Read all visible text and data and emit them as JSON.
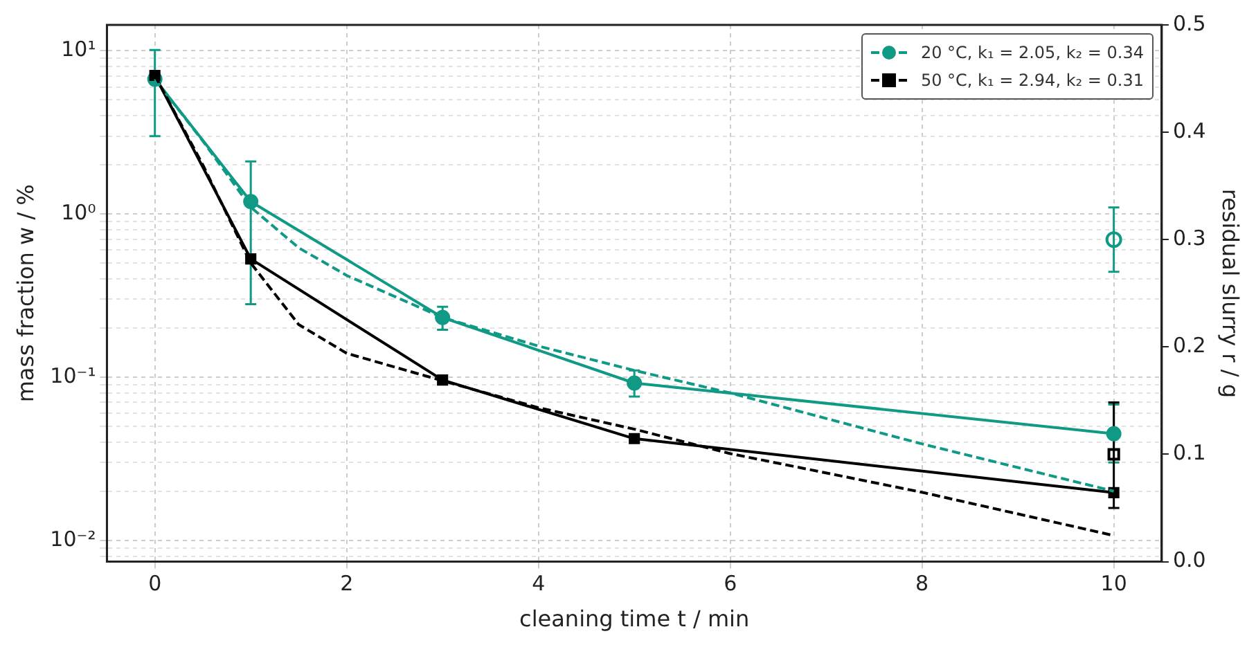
{
  "chart_data": {
    "type": "line",
    "xlabel": "cleaning time t / min",
    "ylabel": "mass fraction w / %",
    "y2label": "residual slurry r / g",
    "log": "y",
    "grid": true,
    "legend": "top right",
    "xlim": [
      -0.5,
      10.5
    ],
    "xticks": [
      0,
      2,
      4,
      6,
      8,
      10
    ],
    "ylim": [
      0.0074,
      14.4
    ],
    "yticks": [
      {
        "value": 0.008,
        "label": null
      },
      {
        "value": 0.009,
        "label": null
      },
      {
        "value": 0.01,
        "label": "10⁻²"
      },
      {
        "value": 0.02,
        "label": null
      },
      {
        "value": 0.03,
        "label": null
      },
      {
        "value": 0.04,
        "label": null
      },
      {
        "value": 0.05,
        "label": null
      },
      {
        "value": 0.06,
        "label": null
      },
      {
        "value": 0.07,
        "label": null
      },
      {
        "value": 0.08,
        "label": null
      },
      {
        "value": 0.09,
        "label": null
      },
      {
        "value": 0.1,
        "label": "10⁻¹"
      },
      {
        "value": 0.2,
        "label": null
      },
      {
        "value": 0.3,
        "label": null
      },
      {
        "value": 0.4,
        "label": null
      },
      {
        "value": 0.5,
        "label": null
      },
      {
        "value": 0.6,
        "label": null
      },
      {
        "value": 0.7,
        "label": null
      },
      {
        "value": 0.8,
        "label": null
      },
      {
        "value": 0.9,
        "label": null
      },
      {
        "value": 1,
        "label": "10⁰"
      },
      {
        "value": 2,
        "label": null
      },
      {
        "value": 3,
        "label": null
      },
      {
        "value": 4,
        "label": null
      },
      {
        "value": 5,
        "label": null
      },
      {
        "value": 6,
        "label": null
      },
      {
        "value": 7,
        "label": null
      },
      {
        "value": 8,
        "label": null
      },
      {
        "value": 9,
        "label": null
      },
      {
        "value": 10,
        "label": "10¹"
      }
    ],
    "y2lim": [
      0,
      0.5
    ],
    "y2ticks": [
      {
        "value": 0,
        "label": "0.0"
      },
      0.1,
      0.2,
      0.3,
      0.4,
      0.5
    ],
    "series": [
      {
        "name": "20 °C, k₁ = 2.05, k₂ = 0.34",
        "color": "#109a85",
        "marker": "circle",
        "line_style": "solid",
        "x": [
          0,
          1,
          3,
          5,
          10
        ],
        "values": [
          6.7,
          1.19,
          0.232,
          0.092,
          0.045
        ],
        "errors": [
          [
            3.0,
            10.1
          ],
          [
            0.28,
            2.1
          ],
          [
            0.195,
            0.27
          ],
          [
            0.076,
            0.11
          ],
          [
            0.03,
            0.068
          ]
        ]
      },
      {
        "name": "50 °C, k₁ = 2.94, k₂ = 0.31",
        "color": "#000000",
        "marker": "square",
        "line_style": "solid",
        "x": [
          0,
          1,
          3,
          5,
          10
        ],
        "values": [
          7.06,
          0.53,
          0.096,
          0.042,
          0.0196
        ],
        "errors": [
          null,
          null,
          null,
          null,
          [
            0.0158,
            0.07
          ]
        ]
      },
      {
        "color": "#109a85",
        "marker": "none",
        "line_style": "dashed",
        "x": [
          0,
          0.5,
          1,
          1.5,
          2,
          3,
          4,
          5,
          6,
          8,
          10
        ],
        "values": [
          6.7,
          2.8,
          1.1,
          0.62,
          0.42,
          0.232,
          0.155,
          0.11,
          0.08,
          0.039,
          0.02
        ]
      },
      {
        "color": "#000000",
        "marker": "none",
        "line_style": "dashed",
        "x": [
          0,
          0.5,
          1,
          1.5,
          2,
          3,
          4,
          5,
          6,
          8,
          10
        ],
        "values": [
          7.06,
          2.0,
          0.5,
          0.21,
          0.14,
          0.095,
          0.065,
          0.048,
          0.034,
          0.0197,
          0.0107
        ]
      },
      {
        "color": "#109a85",
        "marker": "circle",
        "axis": "y2",
        "x": [
          10
        ],
        "values": [
          0.3
        ],
        "errors": [
          [
            0.27,
            0.33
          ]
        ]
      },
      {
        "color": "#000000",
        "marker": "square",
        "axis": "y2",
        "x": [
          10
        ],
        "values": [
          0.1
        ]
      }
    ]
  }
}
